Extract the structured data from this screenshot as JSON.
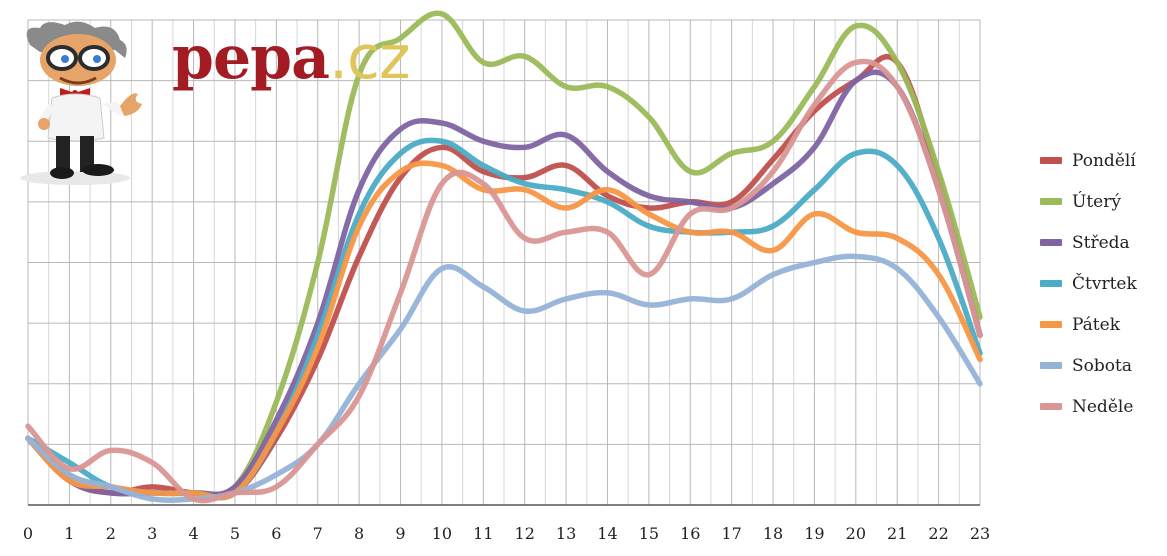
{
  "logo": {
    "name": "pepa",
    "tld": ".cz",
    "mascot": "cartoon-professor-mascot-icon"
  },
  "chart_data": {
    "type": "line",
    "title": "",
    "xlabel": "",
    "ylabel": "",
    "x": [
      0,
      1,
      2,
      3,
      4,
      5,
      6,
      7,
      8,
      9,
      10,
      11,
      12,
      13,
      14,
      15,
      16,
      17,
      18,
      19,
      20,
      21,
      22,
      23
    ],
    "xlim": [
      0,
      23
    ],
    "ylim": [
      0,
      80
    ],
    "grid": true,
    "legend_position": "right",
    "series": [
      {
        "name": "Pondělí",
        "color": "#c0504d",
        "values": [
          11,
          4,
          2,
          3,
          2,
          2,
          11,
          24,
          41,
          54,
          59,
          55,
          54,
          56,
          51,
          49,
          50,
          50,
          57,
          65,
          70,
          73,
          54,
          28
        ]
      },
      {
        "name": "Úterý",
        "color": "#9bbb59",
        "values": [
          11,
          5,
          3,
          2,
          2,
          3,
          17,
          40,
          71,
          77,
          81,
          73,
          74,
          69,
          69,
          64,
          55,
          58,
          60,
          69,
          79,
          73,
          55,
          31
        ]
      },
      {
        "name": "Středa",
        "color": "#8064a2",
        "values": [
          11,
          4,
          2,
          2,
          2,
          3,
          14,
          30,
          52,
          62,
          63,
          60,
          59,
          61,
          55,
          51,
          50,
          49,
          53,
          59,
          70,
          69,
          52,
          28
        ]
      },
      {
        "name": "Čtvrtek",
        "color": "#4bacc6",
        "values": [
          11,
          7,
          3,
          2,
          2,
          2,
          12,
          28,
          48,
          58,
          60,
          56,
          53,
          52,
          50,
          46,
          45,
          45,
          46,
          52,
          58,
          56,
          44,
          25
        ]
      },
      {
        "name": "Pátek",
        "color": "#f79646",
        "values": [
          11,
          4,
          3,
          2,
          2,
          2,
          12,
          26,
          46,
          55,
          56,
          52,
          52,
          49,
          52,
          48,
          45,
          45,
          42,
          48,
          45,
          44,
          38,
          24
        ]
      },
      {
        "name": "Sobota",
        "color": "#95b3d7",
        "values": [
          11,
          5,
          3,
          1,
          1,
          2,
          5,
          10,
          20,
          29,
          39,
          36,
          32,
          34,
          35,
          33,
          34,
          34,
          38,
          40,
          41,
          39,
          31,
          20
        ]
      },
      {
        "name": "Neděle",
        "color": "#d99694",
        "values": [
          13,
          6,
          9,
          7,
          1,
          2,
          3,
          10,
          18,
          35,
          53,
          53,
          44,
          45,
          45,
          38,
          48,
          49,
          55,
          66,
          73,
          69,
          52,
          28
        ]
      }
    ]
  }
}
